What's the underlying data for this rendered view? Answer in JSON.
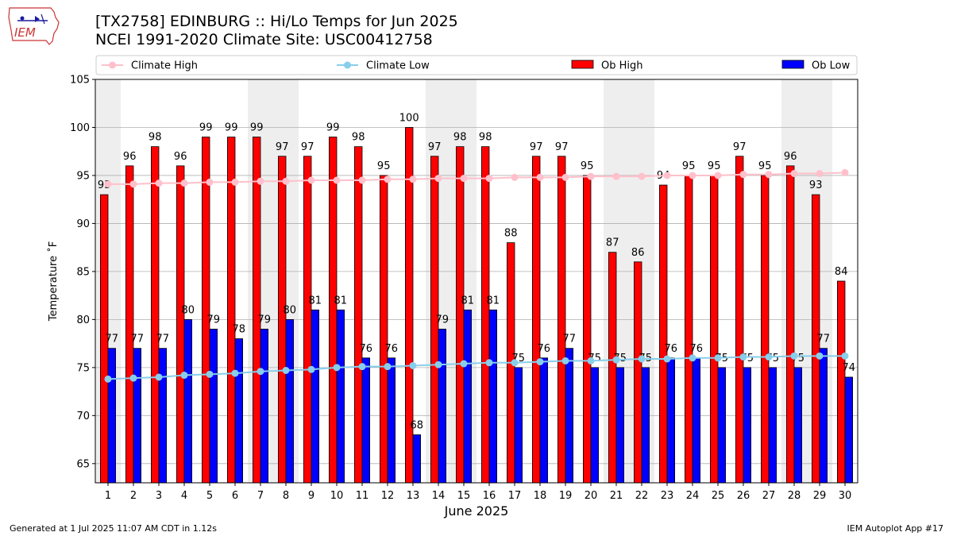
{
  "header": {
    "logo_text": "IEM",
    "title_line1": "[TX2758] EDINBURG :: Hi/Lo Temps for Jun 2025",
    "title_line2": "NCEI 1991-2020 Climate Site: USC00412758"
  },
  "footer": {
    "left": "Generated at 1 Jul 2025 11:07 AM CDT in 1.12s",
    "right": "IEM Autoplot App #17"
  },
  "colors": {
    "ob_high": "#ff0000",
    "ob_low": "#0000ff",
    "climate_high": "#ffc0cb",
    "climate_low": "#87ceeb",
    "weekend_shade": "#eeeeee",
    "grid": "#b0b0b0"
  },
  "chart_data": {
    "type": "bar",
    "xlabel": "June 2025",
    "ylabel": "Temperature ˚F",
    "ylim": [
      63,
      105
    ],
    "yticks": [
      65,
      70,
      75,
      80,
      85,
      90,
      95,
      100,
      105
    ],
    "grid": "horizontal",
    "legend_placement": "top, above plot",
    "categories": [
      "1",
      "2",
      "3",
      "4",
      "5",
      "6",
      "7",
      "8",
      "9",
      "10",
      "11",
      "12",
      "13",
      "14",
      "15",
      "16",
      "17",
      "18",
      "19",
      "20",
      "21",
      "22",
      "23",
      "24",
      "25",
      "26",
      "27",
      "28",
      "29",
      "30"
    ],
    "shaded_days": [
      "1",
      "7",
      "8",
      "14",
      "15",
      "21",
      "22",
      "28",
      "29"
    ],
    "series": [
      {
        "name": "Ob High",
        "kind": "bar",
        "color": "#ff0000",
        "values": [
          93,
          96,
          98,
          96,
          99,
          99,
          99,
          97,
          97,
          99,
          98,
          95,
          100,
          97,
          98,
          98,
          88,
          97,
          97,
          95,
          87,
          86,
          94,
          95,
          95,
          97,
          95,
          96,
          93,
          84
        ]
      },
      {
        "name": "Ob Low",
        "kind": "bar",
        "color": "#0000ff",
        "values": [
          77,
          77,
          77,
          80,
          79,
          78,
          79,
          80,
          81,
          81,
          76,
          76,
          68,
          79,
          81,
          81,
          75,
          76,
          77,
          75,
          75,
          75,
          76,
          76,
          75,
          75,
          75,
          75,
          77,
          74
        ]
      },
      {
        "name": "Climate High",
        "kind": "line",
        "color": "#ffc0cb",
        "values": [
          94.1,
          94.1,
          94.2,
          94.2,
          94.3,
          94.3,
          94.4,
          94.4,
          94.5,
          94.5,
          94.5,
          94.6,
          94.6,
          94.7,
          94.7,
          94.7,
          94.8,
          94.8,
          94.8,
          94.9,
          94.9,
          94.9,
          95.0,
          95.0,
          95.0,
          95.1,
          95.1,
          95.2,
          95.2,
          95.3
        ]
      },
      {
        "name": "Climate Low",
        "kind": "line",
        "color": "#87ceeb",
        "values": [
          73.8,
          73.9,
          74.0,
          74.2,
          74.3,
          74.4,
          74.6,
          74.7,
          74.8,
          75.0,
          75.1,
          75.1,
          75.2,
          75.3,
          75.4,
          75.5,
          75.5,
          75.6,
          75.7,
          75.7,
          75.8,
          75.9,
          75.9,
          76.0,
          76.0,
          76.1,
          76.1,
          76.2,
          76.2,
          76.2
        ]
      }
    ]
  }
}
